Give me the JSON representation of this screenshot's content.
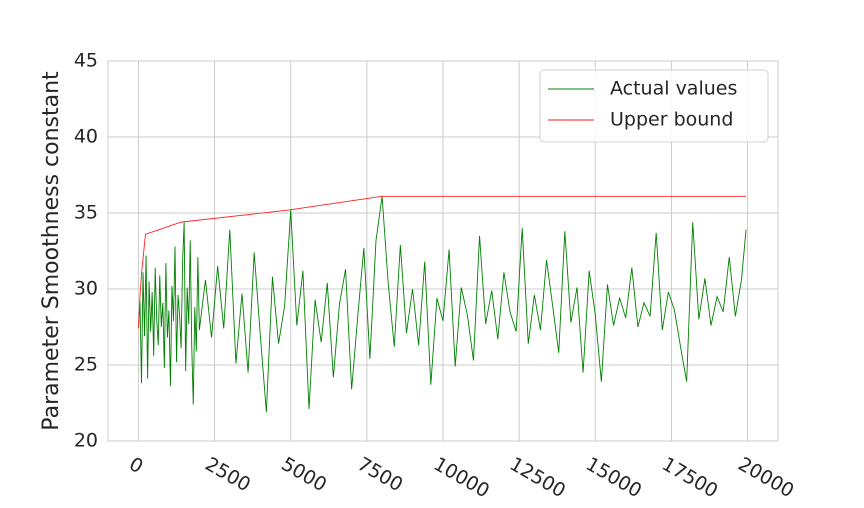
{
  "chart_data": {
    "type": "line",
    "ylabel": "Parameter Smoothness constant",
    "xlim": [
      -1000,
      21000
    ],
    "xticks": [
      0,
      2500,
      5000,
      7500,
      10000,
      12500,
      15000,
      17500,
      20000
    ],
    "ylim": [
      20,
      45
    ],
    "yticks": [
      20,
      25,
      30,
      35,
      40,
      45
    ],
    "grid": true,
    "legend": "upper right",
    "series": [
      {
        "name": "Actual values",
        "color": "#008000",
        "x": [
          0,
          50,
          100,
          150,
          200,
          250,
          300,
          350,
          400,
          450,
          500,
          550,
          600,
          650,
          700,
          750,
          800,
          850,
          900,
          950,
          1000,
          1050,
          1100,
          1150,
          1200,
          1250,
          1300,
          1350,
          1400,
          1450,
          1500,
          1550,
          1600,
          1650,
          1700,
          1750,
          1800,
          1850,
          1900,
          1950,
          2000,
          2200,
          2400,
          2600,
          2800,
          3000,
          3200,
          3400,
          3600,
          3800,
          4000,
          4200,
          4400,
          4600,
          4800,
          5000,
          5200,
          5400,
          5600,
          5800,
          6000,
          6200,
          6400,
          6600,
          6800,
          7000,
          7200,
          7400,
          7600,
          7800,
          8000,
          8200,
          8400,
          8600,
          8800,
          9000,
          9200,
          9400,
          9600,
          9800,
          10000,
          10200,
          10400,
          10600,
          10800,
          11000,
          11200,
          11400,
          11600,
          11800,
          12000,
          12200,
          12400,
          12600,
          12800,
          13000,
          13200,
          13400,
          13600,
          13800,
          14000,
          14200,
          14400,
          14600,
          14800,
          15000,
          15200,
          15400,
          15600,
          15800,
          16000,
          16200,
          16400,
          16600,
          16800,
          17000,
          17200,
          17400,
          17600,
          17800,
          18000,
          18200,
          18400,
          18600,
          18800,
          19000,
          19200,
          19400,
          19600,
          19800,
          19950
        ],
        "values": [
          27.4,
          29.2,
          23.8,
          31.1,
          26.9,
          32.2,
          24.1,
          30.5,
          27.2,
          29.8,
          25.6,
          31.4,
          28.0,
          26.3,
          30.9,
          27.5,
          29.1,
          24.8,
          31.7,
          26.8,
          28.6,
          23.6,
          30.2,
          27.9,
          32.8,
          25.2,
          29.6,
          28.3,
          26.1,
          31.8,
          34.4,
          24.6,
          30.1,
          27.7,
          33.2,
          26.2,
          22.4,
          28.8,
          25.9,
          32.1,
          27.3,
          30.6,
          26.8,
          31.5,
          27.4,
          33.9,
          25.1,
          29.7,
          24.5,
          32.4,
          27.0,
          21.9,
          30.8,
          26.4,
          28.9,
          35.2,
          27.6,
          31.2,
          22.1,
          29.3,
          26.5,
          30.4,
          24.2,
          29.0,
          31.3,
          23.4,
          28.2,
          32.7,
          25.4,
          33.2,
          36.1,
          30.4,
          26.2,
          32.9,
          27.1,
          30.0,
          26.3,
          31.8,
          23.7,
          29.4,
          27.9,
          32.6,
          24.9,
          30.1,
          28.3,
          25.3,
          33.5,
          27.7,
          29.9,
          26.7,
          31.1,
          28.5,
          27.2,
          34.0,
          26.4,
          29.6,
          27.3,
          31.9,
          28.9,
          25.8,
          33.8,
          27.8,
          30.1,
          24.5,
          31.2,
          28.3,
          23.9,
          30.3,
          27.6,
          29.4,
          28.1,
          31.4,
          27.5,
          29.1,
          28.2,
          33.7,
          27.3,
          29.8,
          28.6,
          26.2,
          23.9,
          34.4,
          28.0,
          30.7,
          27.6,
          29.5,
          28.5,
          32.1,
          28.2,
          30.6,
          33.9
        ]
      },
      {
        "name": "Upper bound",
        "color": "#ff2020",
        "x": [
          0,
          50,
          100,
          230,
          1400,
          4950,
          8000,
          19950
        ],
        "values": [
          27.4,
          29.5,
          31.0,
          33.6,
          34.4,
          35.2,
          36.1,
          36.1
        ]
      }
    ]
  }
}
